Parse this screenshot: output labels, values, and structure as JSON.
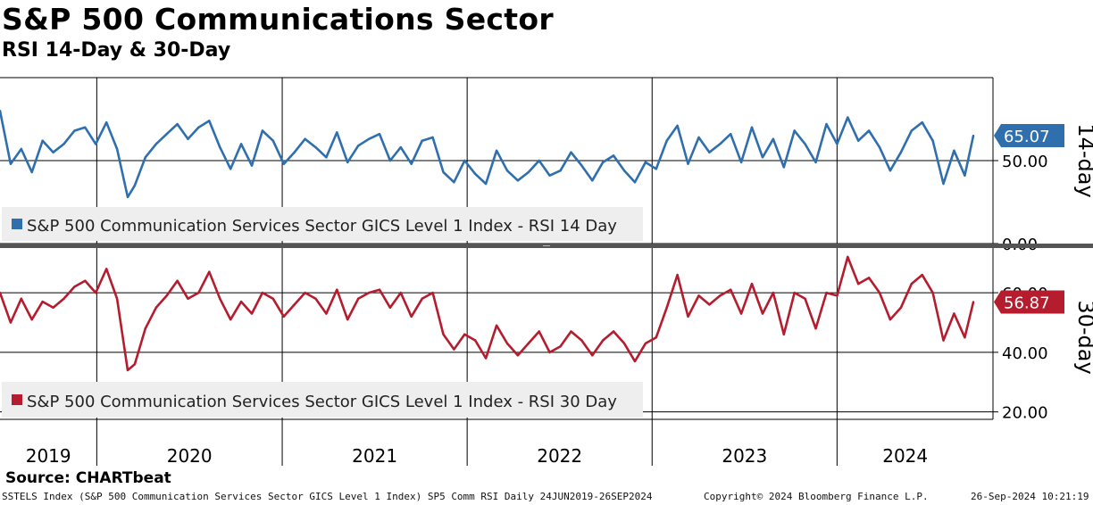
{
  "header": {
    "title": "S&P 500 Communications Sector",
    "subtitle": "RSI 14-Day & 30-Day"
  },
  "source": "Source: CHARTbeat",
  "footer": {
    "description": "SSTELS Index (S&P 500 Communication Services Sector GICS Level 1 Index) SP5 Comm RSI  Daily 24JUN2019-26SEP2024",
    "copyright": "Copyright© 2024 Bloomberg Finance L.P.",
    "timestamp": "26-Sep-2024 10:21:19"
  },
  "colors": {
    "rsi14": "#2f6fae",
    "rsi30": "#b51c2e",
    "grid": "#000000",
    "legend_bg": "#eeeeee",
    "divider": "#555555"
  },
  "chart_data": [
    {
      "type": "line",
      "ylabel": "14-day",
      "ylim": [
        0,
        100
      ],
      "yticks": [
        {
          "value": 0,
          "label": "0.00"
        },
        {
          "value": 50,
          "label": "50.00"
        }
      ],
      "last_value": 65.07,
      "last_label": "65.07",
      "series": [
        {
          "name": "S&P 500 Communication Services Sector GICS Level 1 Index - RSI 14 Day",
          "x": [
            "2019-06-24",
            "2019-07-15",
            "2019-08-05",
            "2019-08-26",
            "2019-09-16",
            "2019-10-07",
            "2019-10-28",
            "2019-11-18",
            "2019-12-09",
            "2019-12-30",
            "2020-01-20",
            "2020-02-10",
            "2020-03-02",
            "2020-03-16",
            "2020-04-06",
            "2020-04-27",
            "2020-05-18",
            "2020-06-08",
            "2020-06-29",
            "2020-07-20",
            "2020-08-10",
            "2020-08-31",
            "2020-09-21",
            "2020-10-12",
            "2020-11-02",
            "2020-11-23",
            "2020-12-14",
            "2021-01-04",
            "2021-01-25",
            "2021-02-15",
            "2021-03-08",
            "2021-03-29",
            "2021-04-19",
            "2021-05-10",
            "2021-05-31",
            "2021-06-21",
            "2021-07-12",
            "2021-08-02",
            "2021-08-23",
            "2021-09-13",
            "2021-10-04",
            "2021-10-25",
            "2021-11-15",
            "2021-12-06",
            "2021-12-27",
            "2022-01-17",
            "2022-02-07",
            "2022-02-28",
            "2022-03-21",
            "2022-04-11",
            "2022-05-02",
            "2022-05-23",
            "2022-06-13",
            "2022-07-04",
            "2022-07-25",
            "2022-08-15",
            "2022-09-05",
            "2022-09-26",
            "2022-10-17",
            "2022-11-07",
            "2022-11-28",
            "2022-12-19",
            "2023-01-09",
            "2023-01-30",
            "2023-02-20",
            "2023-03-13",
            "2023-04-03",
            "2023-04-24",
            "2023-05-15",
            "2023-06-05",
            "2023-06-26",
            "2023-07-17",
            "2023-08-07",
            "2023-08-28",
            "2023-09-18",
            "2023-10-09",
            "2023-10-30",
            "2023-11-20",
            "2023-12-11",
            "2024-01-01",
            "2024-01-22",
            "2024-02-12",
            "2024-03-04",
            "2024-03-25",
            "2024-04-15",
            "2024-05-06",
            "2024-05-27",
            "2024-06-17",
            "2024-07-08",
            "2024-07-29",
            "2024-08-19",
            "2024-09-09",
            "2024-09-26"
          ],
          "values": [
            80,
            48,
            57,
            43,
            62,
            55,
            60,
            68,
            70,
            60,
            73,
            57,
            28,
            35,
            52,
            60,
            66,
            72,
            63,
            70,
            74,
            58,
            45,
            60,
            47,
            68,
            62,
            48,
            55,
            63,
            58,
            52,
            67,
            49,
            59,
            63,
            66,
            50,
            58,
            48,
            62,
            64,
            43,
            37,
            50,
            42,
            36,
            56,
            44,
            38,
            43,
            50,
            41,
            44,
            55,
            47,
            38,
            49,
            53,
            44,
            37,
            49,
            45,
            62,
            71,
            48,
            64,
            55,
            60,
            66,
            49,
            70,
            52,
            63,
            46,
            68,
            60,
            49,
            72,
            60,
            76,
            62,
            68,
            58,
            44,
            55,
            68,
            73,
            62,
            36,
            56,
            41,
            65
          ]
        }
      ]
    },
    {
      "type": "line",
      "ylabel": "30-day",
      "ylim": [
        17.5,
        75
      ],
      "yticks": [
        {
          "value": 20,
          "label": "20.00"
        },
        {
          "value": 40,
          "label": "40.00"
        },
        {
          "value": 60,
          "label": "60.00"
        }
      ],
      "last_value": 56.87,
      "last_label": "56.87",
      "series": [
        {
          "name": "S&P 500 Communication Services Sector GICS Level 1 Index - RSI 30 Day",
          "x": [
            "2019-06-24",
            "2019-07-15",
            "2019-08-05",
            "2019-08-26",
            "2019-09-16",
            "2019-10-07",
            "2019-10-28",
            "2019-11-18",
            "2019-12-09",
            "2019-12-30",
            "2020-01-20",
            "2020-02-10",
            "2020-03-02",
            "2020-03-16",
            "2020-04-06",
            "2020-04-27",
            "2020-05-18",
            "2020-06-08",
            "2020-06-29",
            "2020-07-20",
            "2020-08-10",
            "2020-08-31",
            "2020-09-21",
            "2020-10-12",
            "2020-11-02",
            "2020-11-23",
            "2020-12-14",
            "2021-01-04",
            "2021-01-25",
            "2021-02-15",
            "2021-03-08",
            "2021-03-29",
            "2021-04-19",
            "2021-05-10",
            "2021-05-31",
            "2021-06-21",
            "2021-07-12",
            "2021-08-02",
            "2021-08-23",
            "2021-09-13",
            "2021-10-04",
            "2021-10-25",
            "2021-11-15",
            "2021-12-06",
            "2021-12-27",
            "2022-01-17",
            "2022-02-07",
            "2022-02-28",
            "2022-03-21",
            "2022-04-11",
            "2022-05-02",
            "2022-05-23",
            "2022-06-13",
            "2022-07-04",
            "2022-07-25",
            "2022-08-15",
            "2022-09-05",
            "2022-09-26",
            "2022-10-17",
            "2022-11-07",
            "2022-11-28",
            "2022-12-19",
            "2023-01-09",
            "2023-01-30",
            "2023-02-20",
            "2023-03-13",
            "2023-04-03",
            "2023-04-24",
            "2023-05-15",
            "2023-06-05",
            "2023-06-26",
            "2023-07-17",
            "2023-08-07",
            "2023-08-28",
            "2023-09-18",
            "2023-10-09",
            "2023-10-30",
            "2023-11-20",
            "2023-12-11",
            "2024-01-01",
            "2024-01-22",
            "2024-02-12",
            "2024-03-04",
            "2024-03-25",
            "2024-04-15",
            "2024-05-06",
            "2024-05-27",
            "2024-06-17",
            "2024-07-08",
            "2024-07-29",
            "2024-08-19",
            "2024-09-09",
            "2024-09-26"
          ],
          "values": [
            60,
            50,
            58,
            51,
            57,
            55,
            58,
            62,
            64,
            60,
            68,
            58,
            34,
            36,
            48,
            55,
            59,
            64,
            58,
            60,
            67,
            58,
            51,
            57,
            53,
            60,
            58,
            52,
            56,
            60,
            58,
            53,
            61,
            51,
            58,
            60,
            61,
            55,
            60,
            52,
            58,
            60,
            46,
            41,
            46,
            44,
            38,
            49,
            43,
            39,
            43,
            47,
            40,
            42,
            47,
            44,
            39,
            44,
            47,
            43,
            37,
            43,
            45,
            55,
            66,
            52,
            59,
            56,
            59,
            61,
            53,
            63,
            53,
            60,
            46,
            60,
            58,
            48,
            60,
            59,
            72,
            63,
            65,
            60,
            51,
            55,
            63,
            66,
            60,
            44,
            53,
            45,
            56.87
          ]
        }
      ]
    }
  ],
  "axis": {
    "years": [
      "2019",
      "2020",
      "2021",
      "2022",
      "2023",
      "2024"
    ]
  }
}
